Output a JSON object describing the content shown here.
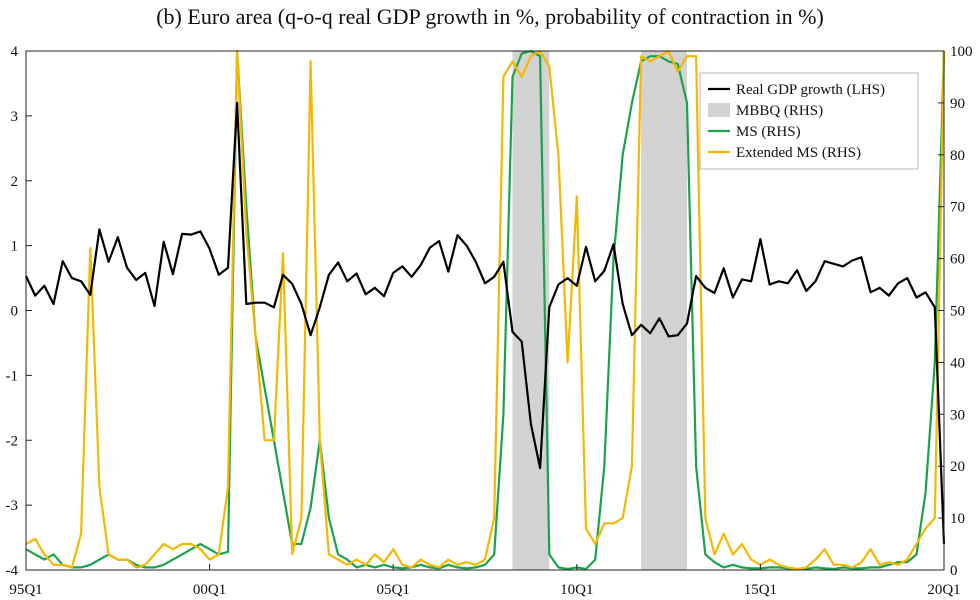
{
  "chart_data": {
    "type": "line",
    "title": "(b) Euro area (q-o-q real GDP growth in %, probability of contraction in %)",
    "x_tick_labels": [
      "95Q1",
      "00Q1",
      "05Q1",
      "10Q1",
      "15Q1",
      "20Q1"
    ],
    "x_start": "1995Q1",
    "x_end": "2020Q1",
    "left_axis": {
      "ylim": [
        -4,
        4
      ],
      "ticks": [
        "4",
        "3",
        "2",
        "1",
        "0",
        "-1",
        "-2",
        "-3",
        "-4"
      ]
    },
    "right_axis": {
      "ylim": [
        0,
        100
      ],
      "ticks": [
        "100",
        "90",
        "80",
        "70",
        "60",
        "50",
        "40",
        "30",
        "20",
        "10",
        "0"
      ]
    },
    "shaded_periods": [
      {
        "name": "MBBQ (RHS)",
        "start": "2008Q2",
        "end": "2009Q2"
      },
      {
        "name": "MBBQ (RHS)",
        "start": "2011Q4",
        "end": "2013Q1"
      }
    ],
    "legend": {
      "placement": "top-right",
      "entries": [
        "Real GDP growth (LHS)",
        "MBBQ (RHS)",
        "MS (RHS)",
        "Extended MS (RHS)"
      ]
    },
    "colors": {
      "gdp": "#000000",
      "mbbq": "#d3d3d3",
      "ms": "#1aa34a",
      "extended_ms": "#f5b800"
    },
    "series": [
      {
        "name": "Real GDP growth (LHS)",
        "axis": "left",
        "values": [
          0.53,
          0.23,
          0.38,
          0.1,
          0.76,
          0.5,
          0.45,
          0.24,
          1.25,
          0.75,
          1.13,
          0.66,
          0.47,
          0.58,
          0.07,
          1.06,
          0.56,
          1.18,
          1.17,
          1.22,
          0.95,
          0.55,
          0.66,
          3.2,
          0.1,
          0.12,
          0.12,
          0.05,
          0.55,
          0.41,
          0.1,
          -0.38,
          0.05,
          0.55,
          0.74,
          0.45,
          0.57,
          0.25,
          0.35,
          0.22,
          0.58,
          0.68,
          0.52,
          0.7,
          0.97,
          1.07,
          0.6,
          1.16,
          1.0,
          0.75,
          0.42,
          0.52,
          0.75,
          -0.33,
          -0.48,
          -1.75,
          -2.43,
          0.05,
          0.4,
          0.5,
          0.38,
          0.98,
          0.45,
          0.61,
          1.02,
          0.1,
          -0.38,
          -0.22,
          -0.35,
          -0.12,
          -0.4,
          -0.38,
          -0.2,
          0.53,
          0.35,
          0.27,
          0.65,
          0.2,
          0.48,
          0.45,
          1.1,
          0.4,
          0.45,
          0.42,
          0.62,
          0.3,
          0.45,
          0.76,
          0.72,
          0.68,
          0.77,
          0.82,
          0.28,
          0.35,
          0.23,
          0.42,
          0.5,
          0.2,
          0.28,
          0.05,
          -3.6
        ]
      },
      {
        "name": "MS (RHS)",
        "axis": "right",
        "values": [
          4,
          3,
          2,
          3,
          1,
          0.5,
          0.5,
          1,
          2,
          3,
          2,
          2,
          1,
          0.5,
          0.5,
          1,
          2,
          3,
          4,
          5,
          4,
          3,
          3.5,
          100,
          70,
          45,
          35,
          25,
          15,
          5,
          5,
          12,
          25,
          10,
          3,
          2,
          0.5,
          1,
          0.5,
          1,
          0.5,
          0.3,
          0.5,
          1,
          0.5,
          0.3,
          1,
          0.5,
          0.3,
          0.5,
          1,
          3,
          30,
          95,
          99.5,
          100,
          99,
          3,
          0.5,
          0.2,
          0.5,
          0.2,
          2,
          20,
          60,
          80,
          90,
          98,
          99,
          99,
          98,
          97.5,
          90,
          20,
          3,
          1.5,
          0.5,
          1,
          0.5,
          0.3,
          0.3,
          0.5,
          0.5,
          0.3,
          0.2,
          0.2,
          0.5,
          0.3,
          0.2,
          0.5,
          0.3,
          0.3,
          0.5,
          0.5,
          1,
          1.5,
          1.5,
          3,
          15,
          40,
          100
        ]
      },
      {
        "name": "Extended MS (RHS)",
        "axis": "right",
        "values": [
          5,
          6,
          3,
          1,
          1,
          0.5,
          7,
          62,
          16,
          3,
          2,
          2,
          0.5,
          1,
          3,
          5,
          4,
          5,
          5,
          4,
          2,
          3,
          16,
          100,
          65,
          45,
          25,
          25,
          61,
          3,
          10,
          98,
          25,
          3,
          2,
          1,
          2,
          1,
          3,
          1.5,
          4,
          1,
          0.5,
          2,
          1,
          0.5,
          2,
          1,
          1.5,
          1,
          2,
          10,
          95,
          98,
          95,
          99,
          100,
          97,
          80,
          40,
          72,
          8,
          5,
          9,
          9,
          10,
          20,
          99,
          98,
          99,
          100,
          96,
          99,
          99,
          10,
          3,
          7,
          3,
          5,
          2,
          1,
          2,
          1,
          0.5,
          0.2,
          0.5,
          2,
          4,
          1,
          1,
          0.5,
          1.5,
          4,
          1,
          1.5,
          1,
          2,
          5,
          8,
          10,
          100
        ]
      }
    ]
  }
}
